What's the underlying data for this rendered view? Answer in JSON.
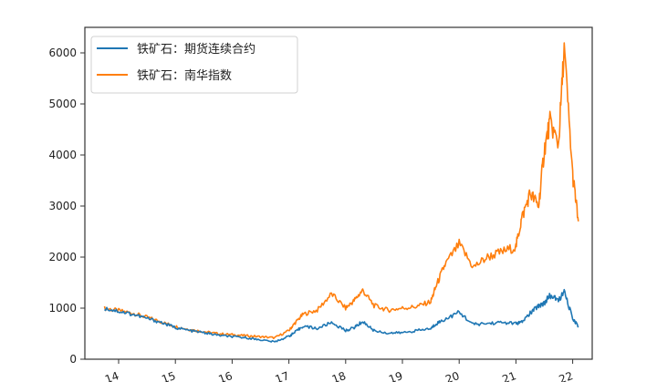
{
  "chart_data": {
    "type": "line",
    "title": "",
    "xlabel": "",
    "ylabel": "",
    "ylim": [
      0,
      6400
    ],
    "yticks": [
      0,
      1000,
      2000,
      3000,
      4000,
      5000,
      6000
    ],
    "xticks": [
      "14",
      "15",
      "16",
      "17",
      "18",
      "19",
      "20",
      "21",
      "22"
    ],
    "grid": false,
    "legend_position": "upper left",
    "x": [
      2013.75,
      2014.0,
      2014.25,
      2014.5,
      2014.75,
      2015.0,
      2015.25,
      2015.5,
      2015.75,
      2016.0,
      2016.25,
      2016.5,
      2016.75,
      2017.0,
      2017.1,
      2017.25,
      2017.5,
      2017.75,
      2018.0,
      2018.15,
      2018.3,
      2018.5,
      2018.75,
      2019.0,
      2019.25,
      2019.5,
      2019.6,
      2019.75,
      2020.0,
      2020.25,
      2020.5,
      2020.75,
      2021.0,
      2021.1,
      2021.25,
      2021.4,
      2021.5,
      2021.6,
      2021.75,
      2021.85,
      2022.0,
      2022.1
    ],
    "series": [
      {
        "name": "铁矿石：期货连续合约",
        "color": "#1f77b4",
        "values": [
          1000,
          940,
          880,
          800,
          720,
          620,
          560,
          520,
          470,
          440,
          420,
          380,
          340,
          450,
          520,
          650,
          600,
          720,
          560,
          620,
          740,
          560,
          510,
          520,
          560,
          600,
          700,
          780,
          920,
          680,
          700,
          720,
          700,
          720,
          900,
          1050,
          1100,
          1250,
          1150,
          1320,
          800,
          650
        ]
      },
      {
        "name": "铁矿石：南华指数",
        "color": "#ff7f0e",
        "values": [
          1000,
          950,
          900,
          820,
          730,
          640,
          580,
          540,
          500,
          480,
          460,
          440,
          420,
          560,
          700,
          880,
          960,
          1280,
          1000,
          1150,
          1350,
          1050,
          960,
          1000,
          1030,
          1130,
          1450,
          1850,
          2250,
          1800,
          2000,
          2100,
          2200,
          2750,
          3250,
          3000,
          4100,
          4650,
          4200,
          6100,
          3600,
          2700
        ]
      }
    ]
  },
  "legend": {
    "items": [
      {
        "label": "铁矿石：期货连续合约",
        "color": "#1f77b4"
      },
      {
        "label": "铁矿石：南华指数",
        "color": "#ff7f0e"
      }
    ]
  },
  "axis": {
    "y_labels": [
      "0",
      "1000",
      "2000",
      "3000",
      "4000",
      "5000",
      "6000"
    ],
    "x_labels": [
      "14",
      "15",
      "16",
      "17",
      "18",
      "19",
      "20",
      "21",
      "22"
    ]
  }
}
